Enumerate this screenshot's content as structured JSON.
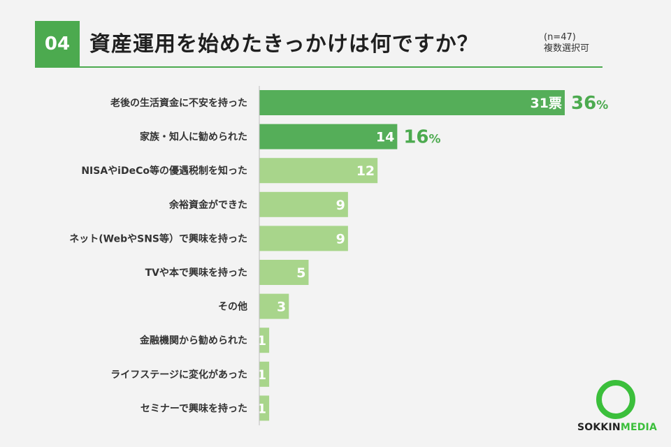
{
  "header": {
    "question_number": "04",
    "title": "資産運用を始めたきっかけは何ですか？",
    "sample_size": "(n=47)",
    "note": "複数選択可"
  },
  "logo": {
    "text_dark": "SOKKIN",
    "text_green": "MEDIA"
  },
  "colors": {
    "accent": "#4caa4f",
    "bar_top": "#55ae59",
    "bar_other": "#a8d58b",
    "text": "#333333"
  },
  "chart_data": {
    "type": "bar",
    "orientation": "horizontal",
    "categories": [
      "老後の生活資金に不安を持った",
      "家族・知人に勧められた",
      "NISAやiDeCo等の優遇税制を知った",
      "余裕資金ができた",
      "ネット(WebやSNS等）で興味を持った",
      "TVや本で興味を持った",
      "その他",
      "金融機関から勧められた",
      "ライフステージに変化があった",
      "セミナーで興味を持った"
    ],
    "values": [
      31,
      14,
      12,
      9,
      9,
      5,
      3,
      1,
      1,
      1
    ],
    "value_labels": [
      "31票",
      "14",
      "12",
      "9",
      "9",
      "5",
      "3",
      "1",
      "1",
      "1"
    ],
    "percent_labels": [
      "36",
      "16",
      "",
      "",
      "",
      "",
      "",
      "",
      "",
      ""
    ],
    "percent_unit": "%",
    "highlighted": [
      true,
      true,
      false,
      false,
      false,
      false,
      false,
      false,
      false,
      false
    ],
    "xlim": [
      0,
      31
    ],
    "grid": false,
    "legend": "none"
  }
}
